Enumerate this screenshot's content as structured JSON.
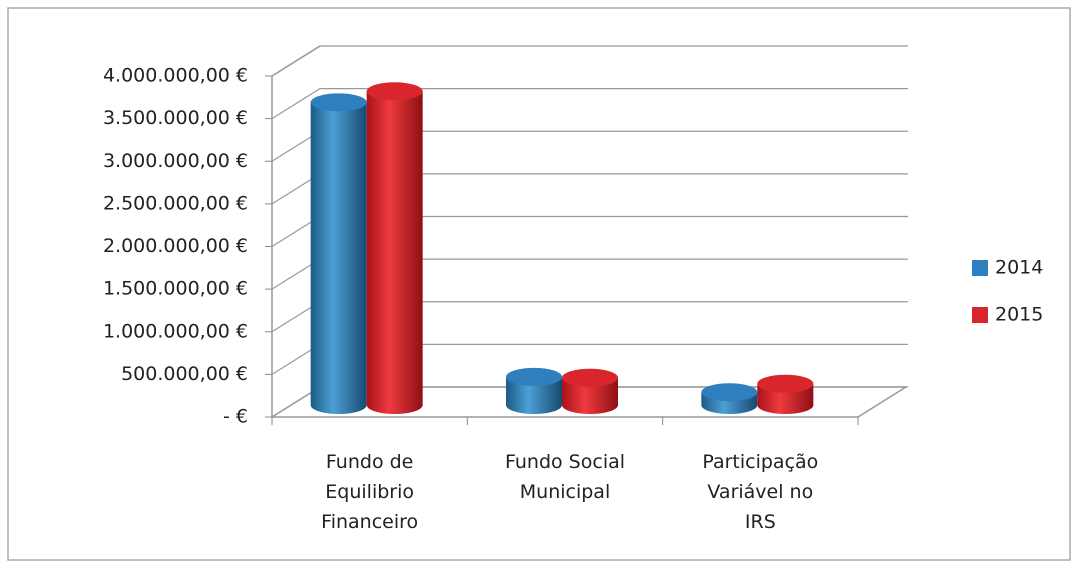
{
  "chart_data": {
    "type": "bar3d",
    "categories": [
      "Fundo de Equilibrio Financeiro",
      "Fundo Social Municipal",
      "Participação Variável no IRS"
    ],
    "series": [
      {
        "name": "2014",
        "color": "#2f7fbf",
        "values": [
          3550000,
          330000,
          150000
        ]
      },
      {
        "name": "2015",
        "color": "#d8262c",
        "values": [
          3680000,
          320000,
          250000
        ]
      }
    ],
    "ylim": [
      0,
      4000000
    ],
    "yticks": [
      {
        "value": 0,
        "label": "-   €"
      },
      {
        "value": 500000,
        "label": "500.000,00 €"
      },
      {
        "value": 1000000,
        "label": "1.000.000,00 €"
      },
      {
        "value": 1500000,
        "label": "1.500.000,00 €"
      },
      {
        "value": 2000000,
        "label": "2.000.000,00 €"
      },
      {
        "value": 2500000,
        "label": "2.500.000,00 €"
      },
      {
        "value": 3000000,
        "label": "3.000.000,00 €"
      },
      {
        "value": 3500000,
        "label": "3.500.000,00 €"
      },
      {
        "value": 4000000,
        "label": "4.000.000,00 €"
      }
    ],
    "grid": true,
    "legend": "right"
  }
}
